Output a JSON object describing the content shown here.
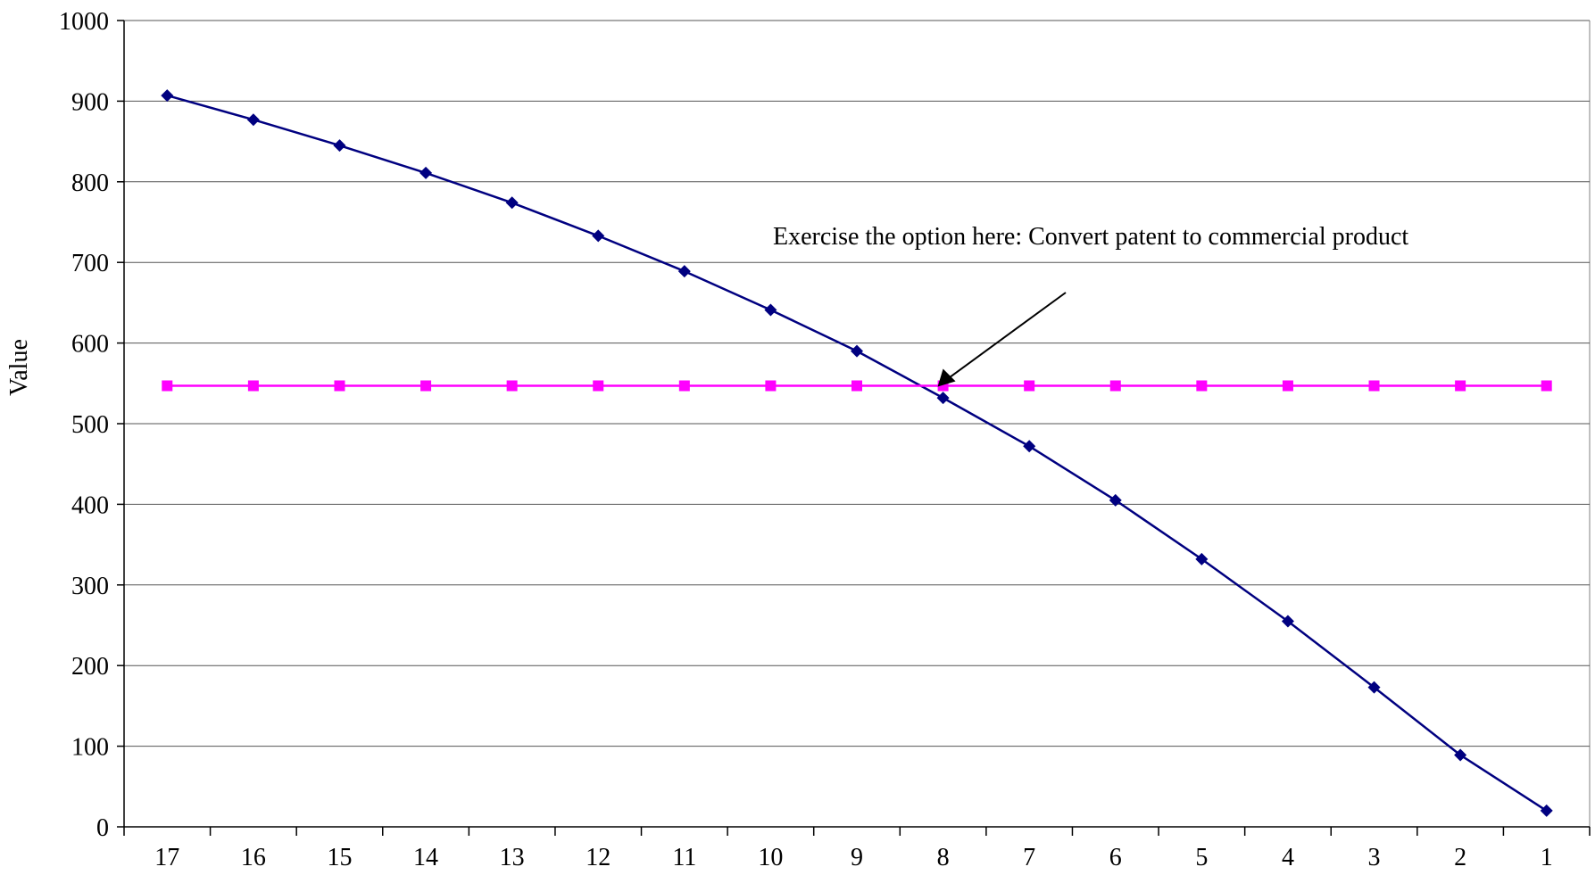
{
  "chart_data": {
    "type": "line",
    "title": "",
    "xlabel": "",
    "ylabel": "Value",
    "ylim": [
      0,
      1000
    ],
    "yticks": [
      0,
      100,
      200,
      300,
      400,
      500,
      600,
      700,
      800,
      900,
      1000
    ],
    "grid": "horizontal",
    "legend": "none",
    "categories": [
      "17",
      "16",
      "15",
      "14",
      "13",
      "12",
      "11",
      "10",
      "9",
      "8",
      "7",
      "6",
      "5",
      "4",
      "3",
      "2",
      "1"
    ],
    "series": [
      {
        "color": "#000080",
        "marker": "diamond",
        "values": [
          907,
          877,
          845,
          811,
          774,
          733,
          689,
          641,
          590,
          532,
          472,
          405,
          332,
          255,
          173,
          89,
          20
        ]
      },
      {
        "color": "#ff00ff",
        "marker": "square",
        "values": [
          547,
          547,
          547,
          547,
          547,
          547,
          547,
          547,
          547,
          547,
          547,
          547,
          547,
          547,
          547,
          547,
          547
        ]
      }
    ],
    "annotation": {
      "text": "Exercise the option here: Convert patent to commercial product",
      "points_to_category": "8",
      "points_to_value": 547
    }
  }
}
